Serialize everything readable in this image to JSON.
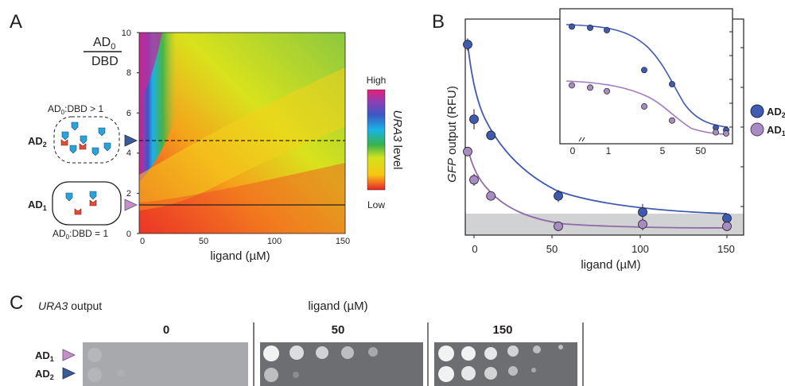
{
  "colors": {
    "ad2_marker": "#3f5bb1",
    "ad2_line": "#3f5bb1",
    "ad1_marker": "#a78cc2",
    "ad1_line": "#8f6aa9",
    "background_band": "#d1d2d3",
    "triangle_ad2": "#3a5a9a",
    "triangle_ad1": "#c291c8"
  },
  "panelA": {
    "letter": "A",
    "ylabel_num": "AD",
    "ylabel_num_sub": "0",
    "ylabel_den": "DBD",
    "yticks": [
      "0",
      "2",
      "4",
      "6",
      "8",
      "10"
    ],
    "xticks": [
      "0",
      "50",
      "100",
      "150"
    ],
    "xlabel": "ligand (µM)",
    "colorbar_high": "High",
    "colorbar_low": "Low",
    "colorbar_title_italic": "URA3",
    "colorbar_title_rest": " level",
    "ad2_label": "AD",
    "ad2_sub": "2",
    "ad1_label": "AD",
    "ad1_sub": "1",
    "ratio_gt_prefix": "AD",
    "ratio_gt_sub": "0",
    "ratio_gt_suffix": ":DBD > 1",
    "ratio_eq_prefix": "AD",
    "ratio_eq_sub": "0",
    "ratio_eq_suffix": ":DBD = 1",
    "ad2_line_y": 4.7,
    "ad1_line_y": 1.5
  },
  "panelB": {
    "letter": "B",
    "ylabel_italic": "GFP",
    "ylabel_rest": " output (RFU)",
    "xticks": [
      "0",
      "50",
      "100",
      "150"
    ],
    "xlabel": "ligand (µM)",
    "inset_xticks": [
      "0",
      "1",
      "5",
      "50"
    ],
    "legend": [
      {
        "label": "AD",
        "sub": "2"
      },
      {
        "label": "AD",
        "sub": "1"
      }
    ]
  },
  "panelC": {
    "letter": "C",
    "title_italic": "URA3",
    "title_rest": " output",
    "ligand_label": "ligand (µM)",
    "concentrations": [
      "0",
      "50",
      "150"
    ],
    "rows": [
      {
        "label": "AD",
        "sub": "1"
      },
      {
        "label": "AD",
        "sub": "2"
      }
    ]
  },
  "chart_data": [
    {
      "type": "line",
      "xlabel": "ligand (µM)",
      "ylabel": "GFP output (RFU)",
      "xlim": [
        -5,
        155
      ],
      "ylim": [
        0,
        10
      ],
      "grid": false,
      "legend_position": "right",
      "series": [
        {
          "name": "AD2",
          "x": [
            -5,
            0,
            10,
            50,
            100,
            150
          ],
          "y": [
            9.2,
            5.5,
            4.7,
            1.7,
            0.9,
            0.6
          ],
          "err": [
            0.3,
            0.5,
            0.1,
            0.3,
            0.4,
            0.1
          ]
        },
        {
          "name": "AD1",
          "x": [
            -5,
            0,
            10,
            50,
            100,
            150
          ],
          "y": [
            3.9,
            2.5,
            1.7,
            0.2,
            0.3,
            0.2
          ],
          "err": [
            0.2,
            0.3,
            0.1,
            0.1,
            0.3,
            0.1
          ]
        }
      ],
      "inset": {
        "x_scale": "log",
        "series": [
          {
            "name": "AD2",
            "x": [
              0,
              0.5,
              1,
              5,
              15,
              75,
              95
            ],
            "y": [
              9.1,
              9.0,
              8.8,
              5.4,
              4.2,
              0.5,
              0.3
            ]
          },
          {
            "name": "AD1",
            "x": [
              0,
              0.5,
              1,
              5,
              15,
              75,
              95
            ],
            "y": [
              4.1,
              3.9,
              3.6,
              2.3,
              1.1,
              0.1,
              0.0
            ]
          }
        ]
      }
    }
  ]
}
